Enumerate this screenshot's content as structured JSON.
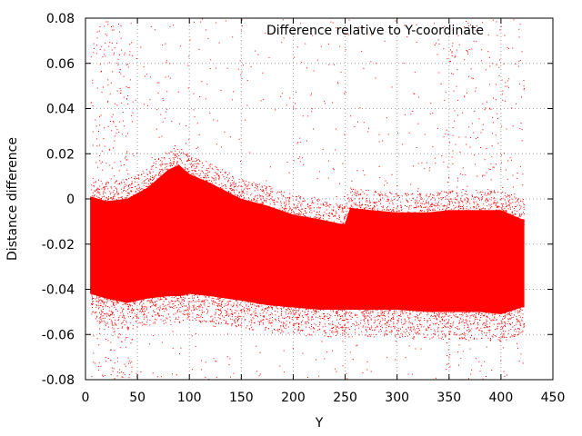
{
  "chart_data": {
    "type": "scatter",
    "title": "Difference relative to Y-coordinate",
    "xlabel": "Y",
    "ylabel": "Distance difference",
    "xlim": [
      0,
      450
    ],
    "ylim": [
      -0.08,
      0.08
    ],
    "xticks": [
      "0",
      "50",
      "100",
      "150",
      "200",
      "250",
      "300",
      "350",
      "400",
      "450"
    ],
    "yticks": [
      "-0.08",
      "-0.06",
      "-0.04",
      "-0.02",
      "0",
      "0.02",
      "0.04",
      "0.06",
      "0.08"
    ],
    "grid": true,
    "color": "#ff0000",
    "x_range_of_points": [
      5,
      422
    ],
    "band_profile": {
      "x": [
        5,
        20,
        40,
        60,
        80,
        90,
        100,
        120,
        150,
        175,
        200,
        225,
        245,
        250,
        255,
        275,
        300,
        330,
        350,
        380,
        400,
        420
      ],
      "upper": [
        -0.002,
        -0.004,
        -0.003,
        0.002,
        0.01,
        0.012,
        0.008,
        0.004,
        -0.003,
        -0.006,
        -0.01,
        -0.012,
        -0.014,
        -0.014,
        -0.007,
        -0.008,
        -0.009,
        -0.009,
        -0.008,
        -0.008,
        -0.008,
        -0.012
      ],
      "lower": [
        -0.04,
        -0.042,
        -0.044,
        -0.042,
        -0.041,
        -0.041,
        -0.04,
        -0.041,
        -0.043,
        -0.045,
        -0.046,
        -0.047,
        -0.047,
        -0.047,
        -0.047,
        -0.047,
        -0.047,
        -0.048,
        -0.048,
        -0.048,
        -0.049,
        -0.046
      ]
    }
  }
}
